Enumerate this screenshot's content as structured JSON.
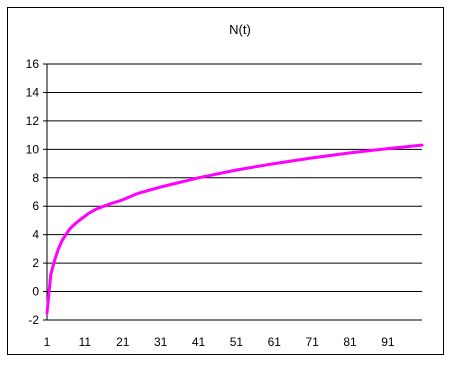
{
  "chart_data": {
    "type": "line",
    "title": "N(t)",
    "xlabel": "",
    "ylabel": "",
    "x_tick_labels": [
      "1",
      "11",
      "21",
      "31",
      "41",
      "51",
      "61",
      "71",
      "81",
      "91"
    ],
    "y_tick_labels": [
      "-2",
      "0",
      "2",
      "4",
      "6",
      "8",
      "10",
      "12",
      "14",
      "16"
    ],
    "xlim": [
      1,
      100
    ],
    "ylim": [
      -2,
      16
    ],
    "grid": "horizontal",
    "legend": "none",
    "series": [
      {
        "color": "#ff00ff",
        "x": [
          1,
          2,
          3,
          4,
          5,
          6,
          7,
          8,
          9,
          10,
          12,
          14,
          16,
          18,
          21,
          25,
          31,
          41,
          51,
          61,
          71,
          81,
          91,
          100
        ],
        "y": [
          -1.5,
          1.2,
          2.2,
          3.0,
          3.6,
          4.0,
          4.4,
          4.65,
          4.9,
          5.1,
          5.5,
          5.8,
          6.0,
          6.2,
          6.45,
          6.9,
          7.35,
          8.0,
          8.55,
          9.0,
          9.4,
          9.75,
          10.05,
          10.3
        ]
      }
    ]
  }
}
